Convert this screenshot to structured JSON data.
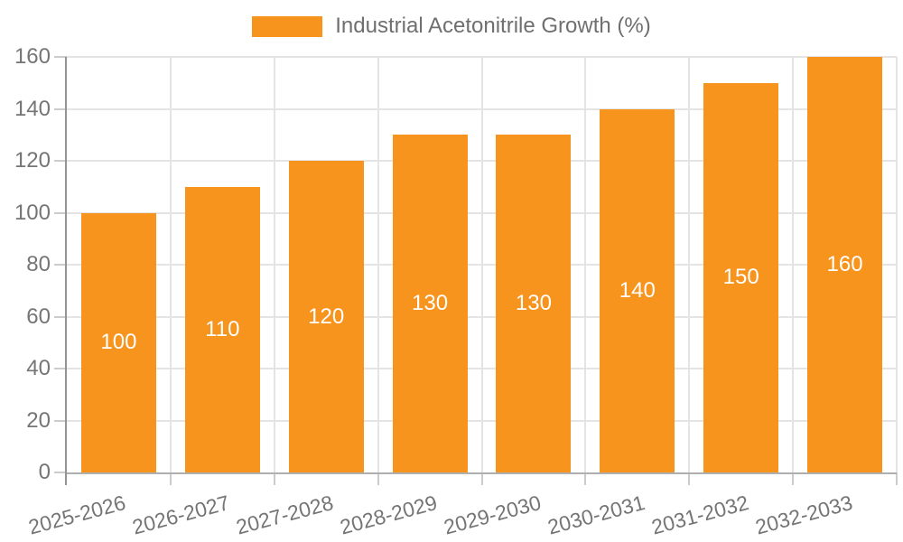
{
  "chart_data": {
    "type": "bar",
    "title": "",
    "legend_position": "top",
    "categories": [
      "2025-2026",
      "2026-2027",
      "2027-2028",
      "2028-2029",
      "2029-2030",
      "2030-2031",
      "2031-2032",
      "2032-2033"
    ],
    "series": [
      {
        "name": "Industrial Acetonitrile Growth (%)",
        "color": "#F7941E",
        "values": [
          100,
          110,
          120,
          130,
          130,
          140,
          150,
          160
        ]
      }
    ],
    "bar_labels_visible": true,
    "bar_label_position": "inside-center",
    "bar_label_color": "#FFFFFF",
    "xlabel": "",
    "ylabel": "",
    "ylim": [
      0,
      160
    ],
    "yticks": [
      0,
      20,
      40,
      60,
      80,
      100,
      120,
      140,
      160
    ],
    "grid": {
      "horizontal": true,
      "vertical": true
    },
    "x_label_rotation_deg": -15,
    "style": {
      "background": "#FFFFFF",
      "grid_color": "#E4E4E4",
      "tick_color": "#CCCCCC",
      "y_axis_color": "#949494",
      "x_axis_color": "#AFAFAF",
      "axis_text_color": "#757575",
      "legend_text_color": "#6F6F6F"
    }
  }
}
